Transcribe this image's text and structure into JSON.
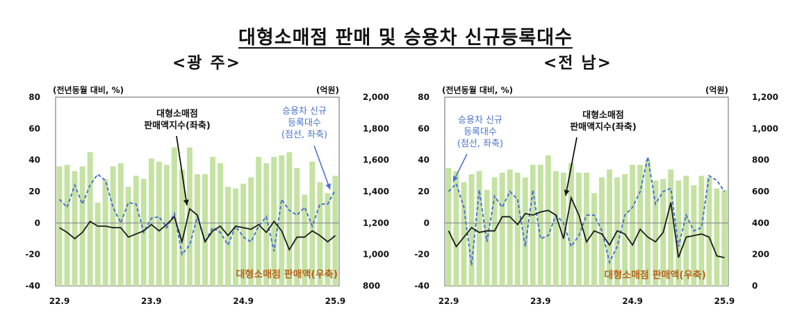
{
  "title": "대형소매점 판매 및 승용차 신규등록대수",
  "chart_data": [
    {
      "type": "bar",
      "region_label": "<광 주>",
      "left_unit": "(전년동월 대비, %)",
      "right_unit": "(억원)",
      "y_left": {
        "min": -40,
        "max": 80,
        "ticks": [
          80,
          60,
          40,
          20,
          0,
          -20,
          -40
        ],
        "tick_labels": [
          "80",
          "60",
          "40",
          "20",
          "0",
          "-20",
          "-40"
        ]
      },
      "y_right": {
        "min": 800,
        "max": 2000,
        "tick_labels": [
          "2,000",
          "1,800",
          "1,600",
          "1,400",
          "1,200",
          "1,000",
          "800"
        ]
      },
      "x_tick_labels": [
        "22.9",
        "23.9",
        "24.9",
        "25.9"
      ],
      "x_tick_index": [
        0,
        12,
        24,
        36
      ],
      "months": 37,
      "series": [
        {
          "name": "대형소매점 판매액(우축)",
          "kind": "bar",
          "axis": "right",
          "values": [
            1560,
            1570,
            1530,
            1560,
            1650,
            1330,
            1480,
            1560,
            1580,
            1430,
            1500,
            1480,
            1610,
            1590,
            1570,
            1680,
            1540,
            1680,
            1510,
            1510,
            1620,
            1580,
            1430,
            1420,
            1450,
            1490,
            1620,
            1580,
            1620,
            1630,
            1650,
            1550,
            1380,
            1590,
            1460,
            1390,
            1500
          ]
        },
        {
          "name": "대형소매점 판매액지수(좌축)",
          "kind": "line",
          "axis": "left",
          "values": [
            -3,
            -6,
            -10,
            -6,
            1,
            -2,
            -2,
            -3,
            -3,
            -9,
            -7,
            -5,
            -1,
            -5,
            -1,
            4,
            -12,
            9,
            5,
            -12,
            -5,
            -2,
            -8,
            -2,
            -3,
            -4,
            -1,
            -6,
            1,
            -5,
            -17,
            -9,
            -9,
            -5,
            -8,
            -12,
            -8
          ]
        },
        {
          "name": "승용차 신규등록대수(점선, 좌축)",
          "kind": "dashed",
          "axis": "left",
          "values": [
            15,
            10,
            24,
            12,
            24,
            31,
            27,
            10,
            0,
            13,
            12,
            -6,
            3,
            4,
            -3,
            6,
            -20,
            -14,
            4,
            -12,
            -3,
            -6,
            -14,
            -2,
            -9,
            -12,
            -2,
            4,
            -18,
            15,
            8,
            5,
            10,
            -2,
            12,
            12,
            21
          ]
        }
      ],
      "annotations": {
        "black_label": [
          "대형소매점",
          "판매액지수(좌축)"
        ],
        "blue_label": [
          "승용차 신규",
          "등록대수",
          "(점선, 좌축)"
        ],
        "bar_label": "대형소매점 판매액(우축)"
      }
    },
    {
      "type": "bar",
      "region_label": "<전 남>",
      "left_unit": "(전년동월 대비, %)",
      "right_unit": "(억원)",
      "y_left": {
        "min": -40,
        "max": 80,
        "ticks": [
          80,
          60,
          40,
          20,
          0,
          -20,
          -40
        ],
        "tick_labels": [
          "80",
          "60",
          "40",
          "20",
          "0",
          "-20",
          "-40"
        ]
      },
      "y_right": {
        "min": 0,
        "max": 1200,
        "tick_labels": [
          "1,200",
          "1,000",
          "800",
          "600",
          "400",
          "200",
          "0"
        ]
      },
      "x_tick_labels": [
        "22.9",
        "23.9",
        "24.9",
        "25.9"
      ],
      "x_tick_index": [
        0,
        12,
        24,
        36
      ],
      "months": 37,
      "series": [
        {
          "name": "대형소매점 판매액(우축)",
          "kind": "bar",
          "axis": "right",
          "values": [
            750,
            730,
            660,
            710,
            730,
            610,
            690,
            720,
            740,
            720,
            690,
            770,
            770,
            830,
            730,
            720,
            780,
            720,
            720,
            590,
            690,
            740,
            690,
            710,
            770,
            770,
            800,
            670,
            680,
            740,
            670,
            700,
            640,
            700,
            690,
            620,
            610
          ]
        },
        {
          "name": "대형소매점 판매액지수(좌축)",
          "kind": "line",
          "axis": "left",
          "values": [
            -5,
            -15,
            -9,
            -3,
            -6,
            -5,
            -5,
            4,
            4,
            -1,
            6,
            5,
            7,
            8,
            5,
            -10,
            16,
            5,
            -12,
            -5,
            -7,
            -14,
            -5,
            -7,
            -14,
            -4,
            -9,
            -12,
            -6,
            13,
            -22,
            -9,
            -8,
            -7,
            -9,
            -21,
            -22
          ]
        },
        {
          "name": "승용차 신규등록대수(점선, 좌축)",
          "kind": "dashed",
          "axis": "left",
          "values": [
            20,
            25,
            10,
            -27,
            21,
            -12,
            17,
            10,
            20,
            15,
            -15,
            21,
            -10,
            -8,
            5,
            0,
            -15,
            -8,
            5,
            5,
            -5,
            -25,
            -15,
            5,
            10,
            20,
            42,
            12,
            20,
            22,
            -15,
            5,
            -5,
            -3,
            30,
            27,
            20
          ]
        }
      ],
      "annotations": {
        "black_label": [
          "대형소매점",
          "판매액지수(좌축)"
        ],
        "blue_label": [
          "승용차 신규",
          "등록대수",
          "(점선, 좌축)"
        ],
        "bar_label": "대형소매점 판매액(우축)"
      }
    }
  ]
}
